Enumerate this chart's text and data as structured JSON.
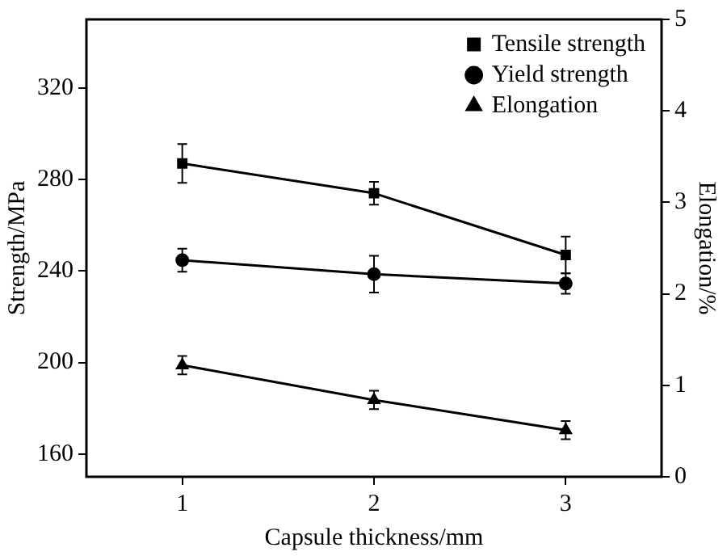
{
  "chart_data": {
    "type": "line",
    "xlabel": "Capsule thickness/mm",
    "ylabel": "Strength/MPa",
    "y2label": "Elongation/%",
    "x": [
      1,
      2,
      3
    ],
    "xlim": [
      0.5,
      3.5
    ],
    "xticks": [
      1,
      2,
      3
    ],
    "ylim": [
      150,
      350
    ],
    "yticks": [
      160,
      200,
      240,
      280,
      320
    ],
    "y2lim": [
      0,
      5
    ],
    "y2ticks": [
      0,
      1,
      2,
      3,
      4,
      5
    ],
    "grid": false,
    "legend": "top right",
    "line_style": "solid",
    "series": [
      {
        "name": "Tensile strength",
        "color": "#000000",
        "marker": "square",
        "values": [
          287,
          274,
          247
        ],
        "errors": [
          8.5,
          5,
          8
        ]
      },
      {
        "name": "Yield strength",
        "color": "#000000",
        "marker": "circle",
        "values": [
          244.7,
          238.6,
          234.5
        ],
        "errors": [
          5,
          8,
          4.5
        ]
      },
      {
        "name": "Elongation",
        "color": "#000000",
        "marker": "triangle",
        "axis": "y2",
        "values": [
          1.22,
          0.84,
          0.51
        ],
        "errors": [
          0.1,
          0.1,
          0.1
        ]
      }
    ]
  }
}
